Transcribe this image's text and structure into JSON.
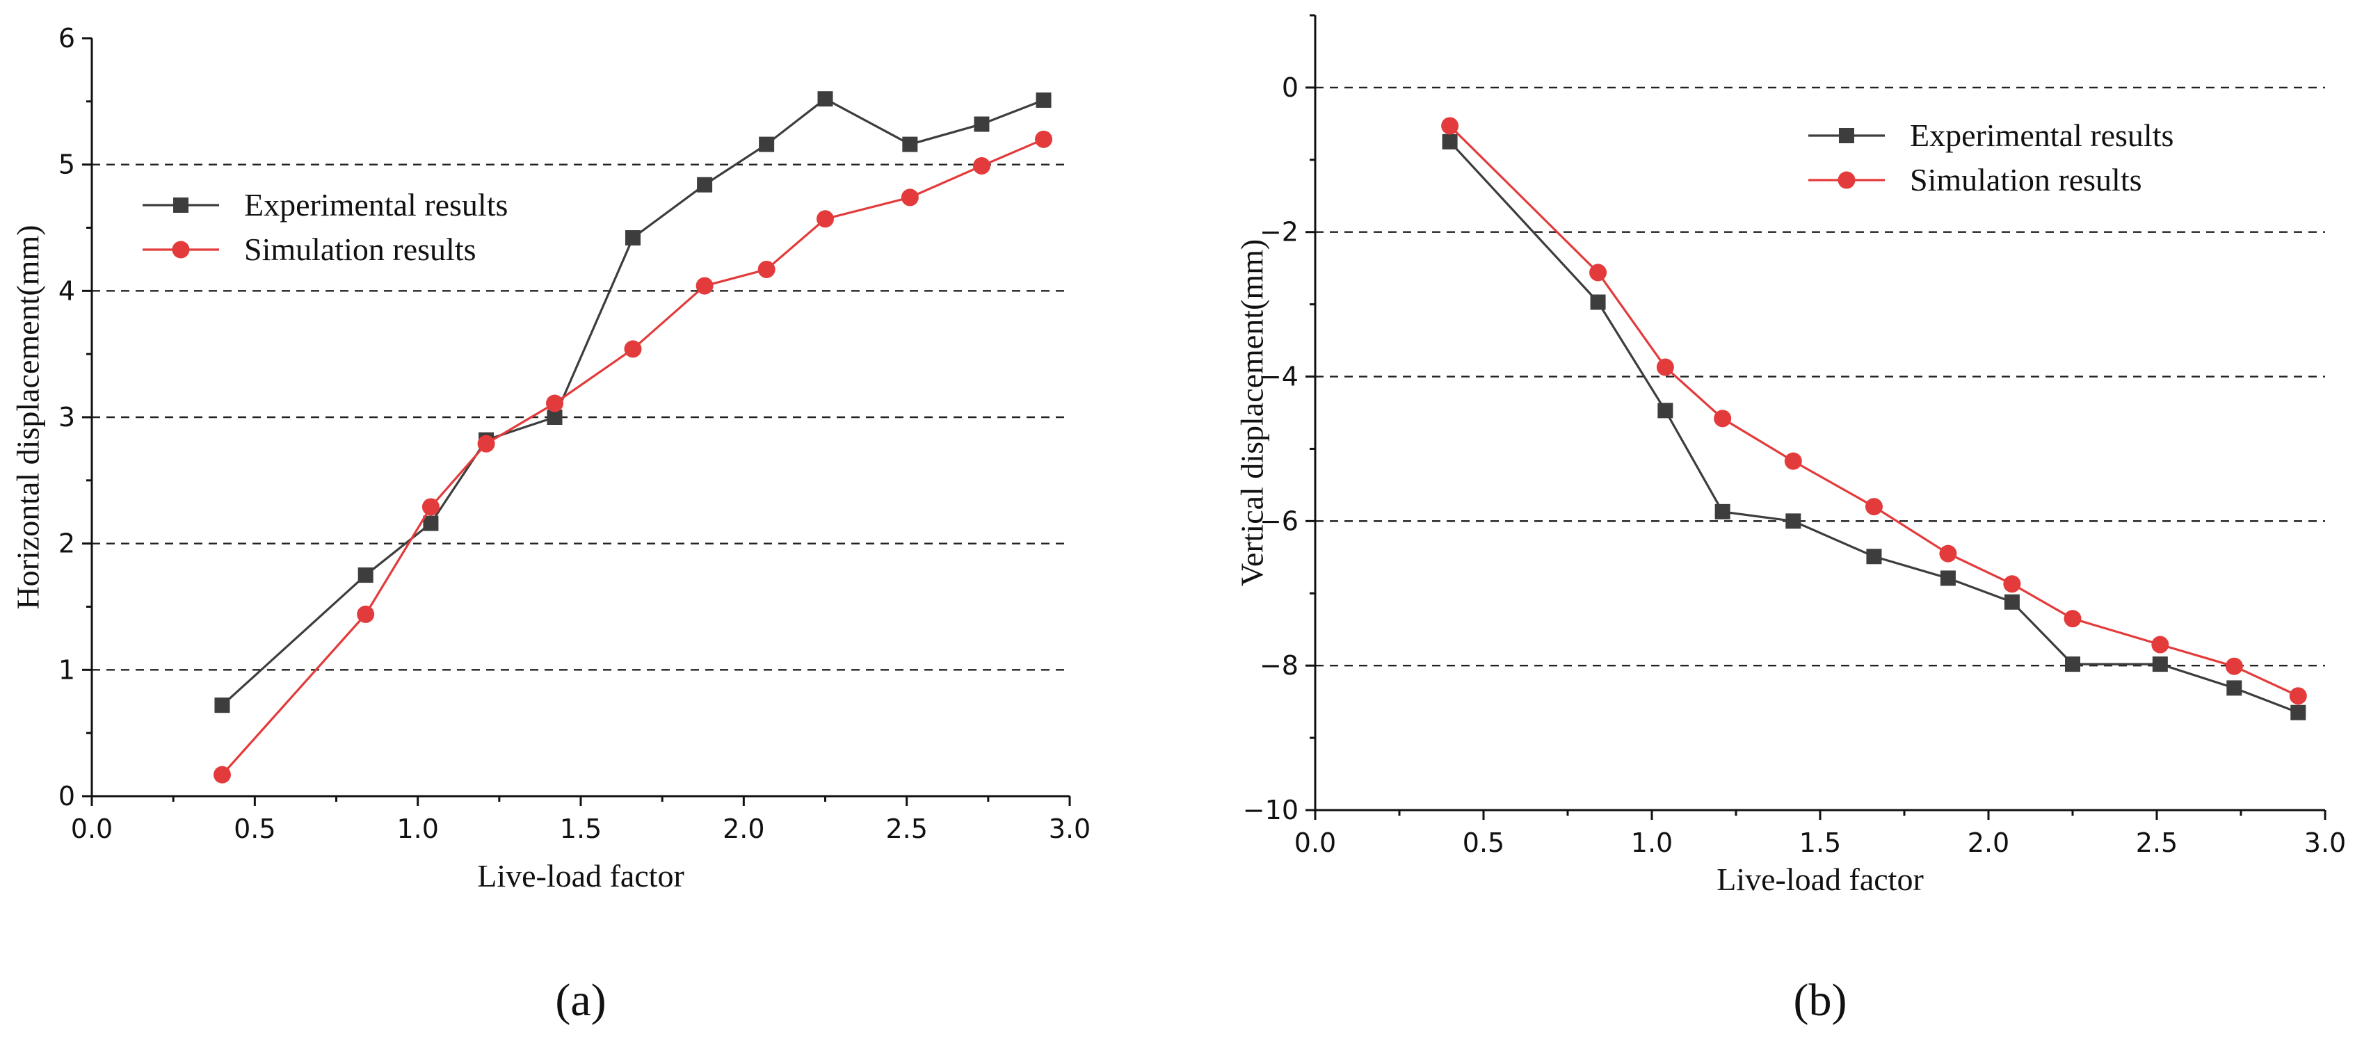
{
  "chart_data": [
    {
      "type": "line",
      "panel_label": "(a)",
      "xlabel": "Live-load factor",
      "ylabel": "Horizontal displacement(mm)",
      "xlim": [
        0.0,
        3.0
      ],
      "ylim": [
        0,
        6
      ],
      "xticks": [
        "0.0",
        "0.5",
        "1.0",
        "1.5",
        "2.0",
        "2.5",
        "3.0"
      ],
      "yticks": [
        "0",
        "1",
        "2",
        "3",
        "4",
        "5",
        "6"
      ],
      "gridlines_y": [
        1,
        2,
        3,
        4,
        5
      ],
      "legend_position": "upper-left",
      "series": [
        {
          "name": "Experimental results",
          "color": "#3d3d3d",
          "marker": "square",
          "x": [
            0.4,
            0.84,
            1.04,
            1.21,
            1.42,
            1.66,
            1.88,
            2.07,
            2.25,
            2.51,
            2.73,
            2.92
          ],
          "y": [
            0.72,
            1.75,
            2.16,
            2.82,
            3.0,
            4.42,
            4.84,
            5.16,
            5.52,
            5.16,
            5.32,
            5.51
          ]
        },
        {
          "name": "Simulation results",
          "color": "#e33b3b",
          "marker": "circle",
          "x": [
            0.4,
            0.84,
            1.04,
            1.21,
            1.42,
            1.66,
            1.88,
            2.07,
            2.25,
            2.51,
            2.73,
            2.92
          ],
          "y": [
            0.17,
            1.44,
            2.29,
            2.79,
            3.11,
            3.54,
            4.04,
            4.17,
            4.57,
            4.74,
            4.99,
            5.2
          ]
        }
      ]
    },
    {
      "type": "line",
      "panel_label": "(b)",
      "xlabel": "Live-load factor",
      "ylabel": "Vertical displacement(mm)",
      "xlim": [
        0.0,
        3.0
      ],
      "ylim": [
        -10,
        1
      ],
      "xticks": [
        "0.0",
        "0.5",
        "1.0",
        "1.5",
        "2.0",
        "2.5",
        "3.0"
      ],
      "yticks": [
        "0",
        "−2",
        "−4",
        "−6",
        "−8",
        "−10"
      ],
      "gridlines_y": [
        0,
        -2,
        -4,
        -6,
        -8
      ],
      "legend_position": "upper-right",
      "series": [
        {
          "name": "Experimental results",
          "color": "#3d3d3d",
          "marker": "square",
          "x": [
            0.4,
            0.84,
            1.04,
            1.21,
            1.42,
            1.66,
            1.88,
            2.07,
            2.25,
            2.51,
            2.73,
            2.92
          ],
          "y": [
            -0.75,
            -2.97,
            -4.47,
            -5.87,
            -6.0,
            -6.49,
            -6.79,
            -7.12,
            -7.98,
            -7.98,
            -8.31,
            -8.65
          ]
        },
        {
          "name": "Simulation results",
          "color": "#e33b3b",
          "marker": "circle",
          "x": [
            0.4,
            0.84,
            1.04,
            1.21,
            1.42,
            1.66,
            1.88,
            2.07,
            2.25,
            2.51,
            2.73,
            2.92
          ],
          "y": [
            -0.53,
            -2.56,
            -3.87,
            -4.58,
            -5.17,
            -5.8,
            -6.45,
            -6.87,
            -7.35,
            -7.71,
            -8.01,
            -8.42
          ]
        }
      ]
    }
  ]
}
